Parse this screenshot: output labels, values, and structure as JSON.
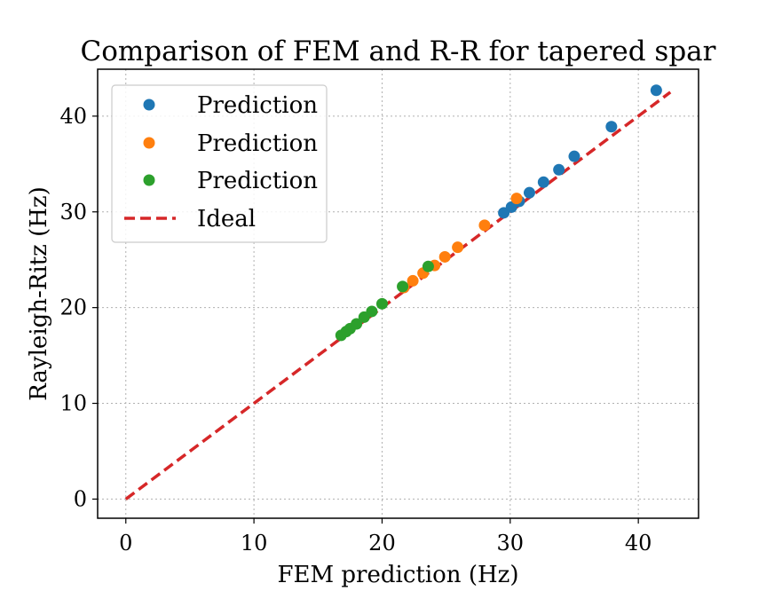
{
  "chart_data": {
    "type": "scatter",
    "title": "Comparison of FEM and R-R for tapered spar",
    "xlabel": "FEM prediction (Hz)",
    "ylabel": "Rayleigh-Ritz (Hz)",
    "xlim": [
      -2.2,
      44.7
    ],
    "ylim": [
      -2.0,
      44.9
    ],
    "xticks": [
      0,
      10,
      20,
      30,
      40
    ],
    "yticks": [
      0,
      10,
      20,
      30,
      40
    ],
    "grid": true,
    "legend_position": "top-left",
    "series": [
      {
        "name": "Prediction",
        "color": "#1f77b4",
        "x": [
          29.5,
          30.1,
          30.7,
          31.5,
          32.6,
          33.8,
          35.0,
          37.9,
          41.4
        ],
        "y": [
          29.9,
          30.5,
          31.1,
          32.0,
          33.1,
          34.4,
          35.8,
          38.9,
          42.7
        ]
      },
      {
        "name": "Prediction",
        "color": "#ff7f0e",
        "x": [
          21.7,
          22.4,
          23.2,
          24.1,
          24.9,
          25.9,
          28.0,
          30.5
        ],
        "y": [
          22.1,
          22.8,
          23.6,
          24.4,
          25.3,
          26.3,
          28.6,
          31.4
        ]
      },
      {
        "name": "Prediction",
        "color": "#2ca02c",
        "x": [
          16.8,
          17.2,
          17.5,
          18.0,
          18.6,
          19.2,
          20.0,
          21.6,
          23.6
        ],
        "y": [
          17.1,
          17.5,
          17.8,
          18.3,
          19.0,
          19.6,
          20.4,
          22.2,
          24.3
        ]
      }
    ],
    "reference_line": {
      "name": "Ideal",
      "color": "#d62728",
      "style": "dashed",
      "x": [
        0,
        42.5
      ],
      "y": [
        0,
        42.5
      ]
    }
  }
}
